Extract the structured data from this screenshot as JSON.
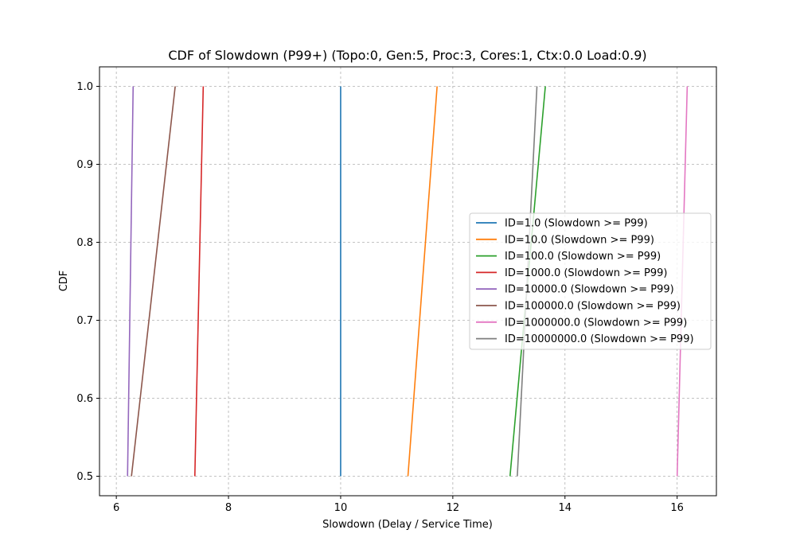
{
  "chart_data": {
    "type": "line",
    "title": "CDF of Slowdown (P99+) (Topo:0, Gen:5, Proc:3, Cores:1, Ctx:0.0 Load:0.9)",
    "xlabel": "Slowdown (Delay / Service Time)",
    "ylabel": "CDF",
    "xlim": [
      5.7,
      16.7
    ],
    "ylim": [
      0.475,
      1.025
    ],
    "xticks": [
      6,
      8,
      10,
      12,
      14,
      16
    ],
    "yticks": [
      0.5,
      0.6,
      0.7,
      0.8,
      0.9,
      1.0
    ],
    "xtick_labels": [
      "6",
      "8",
      "10",
      "12",
      "14",
      "16"
    ],
    "ytick_labels": [
      "0.5",
      "0.6",
      "0.7",
      "0.8",
      "0.9",
      "1.0"
    ],
    "grid": true,
    "legend_position": "center-right",
    "series": [
      {
        "name": "ID=1.0 (Slowdown >= P99)",
        "color": "#1f77b4",
        "x": [
          10.0,
          10.0
        ],
        "y": [
          0.5,
          1.0
        ]
      },
      {
        "name": "ID=10.0 (Slowdown >= P99)",
        "color": "#ff7f0e",
        "x": [
          11.2,
          11.72
        ],
        "y": [
          0.5,
          1.0
        ]
      },
      {
        "name": "ID=100.0 (Slowdown >= P99)",
        "color": "#2ca02c",
        "x": [
          13.02,
          13.65
        ],
        "y": [
          0.5,
          1.0
        ]
      },
      {
        "name": "ID=1000.0 (Slowdown >= P99)",
        "color": "#d62728",
        "x": [
          7.4,
          7.55
        ],
        "y": [
          0.5,
          1.0
        ]
      },
      {
        "name": "ID=10000.0 (Slowdown >= P99)",
        "color": "#9467bd",
        "x": [
          6.2,
          6.3
        ],
        "y": [
          0.5,
          1.0
        ]
      },
      {
        "name": "ID=100000.0 (Slowdown >= P99)",
        "color": "#8c564b",
        "x": [
          6.27,
          7.05
        ],
        "y": [
          0.5,
          1.0
        ]
      },
      {
        "name": "ID=1000000.0 (Slowdown >= P99)",
        "color": "#e377c2",
        "x": [
          16.0,
          16.18
        ],
        "y": [
          0.5,
          1.0
        ]
      },
      {
        "name": "ID=10000000.0 (Slowdown >= P99)",
        "color": "#7f7f7f",
        "x": [
          13.15,
          13.5
        ],
        "y": [
          0.5,
          1.0
        ]
      }
    ]
  }
}
